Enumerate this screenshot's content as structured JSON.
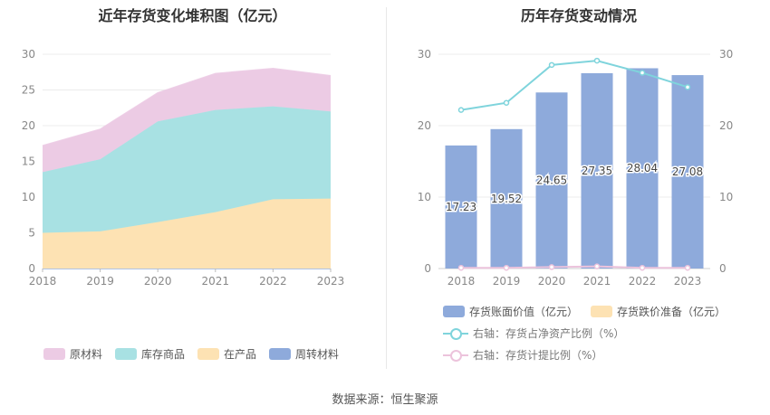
{
  "source": "数据来源：恒生聚源",
  "chart_data": [
    {
      "type": "area",
      "stacked": true,
      "title": "近年存货变化堆积图（亿元）",
      "categories": [
        "2018",
        "2019",
        "2020",
        "2021",
        "2022",
        "2023"
      ],
      "ylim": [
        0,
        30
      ],
      "yticks": [
        0,
        5,
        10,
        15,
        20,
        25,
        30
      ],
      "grid": true,
      "legend_position": "bottom",
      "series": [
        {
          "name": "周转材料",
          "color": "#8eaadb",
          "values": [
            0,
            0,
            0,
            0,
            0,
            0
          ]
        },
        {
          "name": "在产品",
          "color": "#fde2b3",
          "values": [
            5.0,
            5.2,
            6.5,
            7.9,
            9.7,
            9.8
          ]
        },
        {
          "name": "库存商品",
          "color": "#a8e1e3",
          "values": [
            8.5,
            10.1,
            14.1,
            14.3,
            13.0,
            12.2
          ]
        },
        {
          "name": "原材料",
          "color": "#eccbe4",
          "values": [
            3.7,
            4.2,
            4.0,
            5.1,
            5.3,
            5.0
          ]
        }
      ],
      "legend_order": [
        "原材料",
        "库存商品",
        "在产品",
        "周转材料"
      ]
    },
    {
      "type": "bar",
      "title": "历年存货变动情况",
      "categories": [
        "2018",
        "2019",
        "2020",
        "2021",
        "2022",
        "2023"
      ],
      "ylim": [
        0,
        30
      ],
      "y2lim": [
        0,
        30
      ],
      "yticks": [
        0,
        10,
        20,
        30
      ],
      "legend_position": "bottom",
      "series": [
        {
          "name": "存货账面价值（亿元）",
          "type": "bar",
          "color": "#8eaadb",
          "values": [
            17.23,
            19.52,
            24.65,
            27.35,
            28.04,
            27.08
          ],
          "labels": [
            "17.23",
            "19.52",
            "24.65",
            "27.35",
            "28.04",
            "27.08"
          ]
        },
        {
          "name": "存货跌价准备（亿元）",
          "type": "bar",
          "color": "#fde2b3",
          "values": [
            0,
            0,
            0,
            0,
            0,
            0
          ]
        },
        {
          "name": "右轴：存货占净资产比例（%）",
          "type": "line",
          "axis": "right",
          "color": "#7fd4dc",
          "values": [
            22.2,
            23.2,
            28.5,
            29.1,
            27.4,
            25.4
          ]
        },
        {
          "name": "右轴：存货计提比例（%）",
          "type": "line",
          "axis": "right",
          "color": "#ecc3dc",
          "values": [
            0.1,
            0.1,
            0.2,
            0.3,
            0.1,
            0.1
          ]
        }
      ]
    }
  ]
}
